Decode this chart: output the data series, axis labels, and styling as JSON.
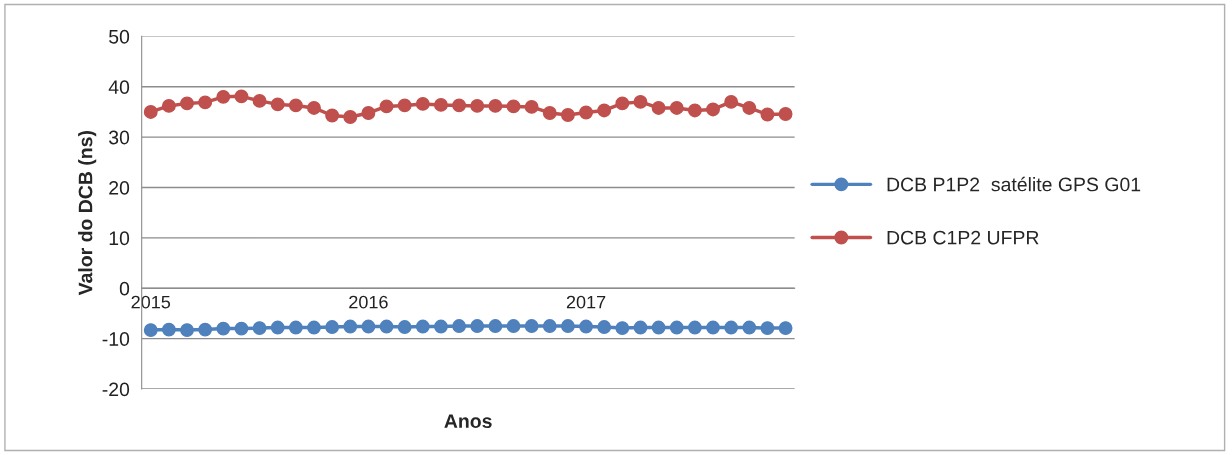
{
  "chart_data": {
    "type": "line",
    "xlabel": "Anos",
    "ylabel": "Valor do DCB (ns)",
    "categories": [
      "2015",
      null,
      null,
      null,
      null,
      null,
      null,
      null,
      null,
      null,
      null,
      null,
      "2016",
      null,
      null,
      null,
      null,
      null,
      null,
      null,
      null,
      null,
      null,
      null,
      "2017",
      null,
      null,
      null,
      null,
      null,
      null,
      null,
      null,
      null,
      null,
      null
    ],
    "series": [
      {
        "name": "DCB P1P2  satélite GPS G01",
        "color": "#4f81bd",
        "values": [
          -8.3,
          -8.2,
          -8.3,
          -8.2,
          -8.0,
          -8.0,
          -7.9,
          -7.8,
          -7.8,
          -7.8,
          -7.7,
          -7.6,
          -7.6,
          -7.6,
          -7.7,
          -7.6,
          -7.6,
          -7.5,
          -7.5,
          -7.5,
          -7.5,
          -7.5,
          -7.5,
          -7.5,
          -7.6,
          -7.7,
          -7.9,
          -7.8,
          -7.8,
          -7.8,
          -7.8,
          -7.8,
          -7.8,
          -7.8,
          -7.9,
          -7.9
        ]
      },
      {
        "name": "DCB C1P2 UFPR",
        "color": "#c0504d",
        "values": [
          35.0,
          36.2,
          36.7,
          36.9,
          38.0,
          38.1,
          37.2,
          36.5,
          36.3,
          35.8,
          34.3,
          34.0,
          34.8,
          36.1,
          36.3,
          36.6,
          36.4,
          36.3,
          36.2,
          36.2,
          36.1,
          36.0,
          34.8,
          34.4,
          34.9,
          35.3,
          36.7,
          37.0,
          35.8,
          35.8,
          35.3,
          35.5,
          37.0,
          35.8,
          34.5,
          34.6
        ]
      }
    ],
    "ylim": [
      -20,
      50
    ],
    "yticks": [
      -20,
      -10,
      0,
      10,
      20,
      30,
      40,
      50
    ],
    "grid": "y",
    "legend": "right",
    "marker": "circle",
    "line_style": "solid"
  }
}
